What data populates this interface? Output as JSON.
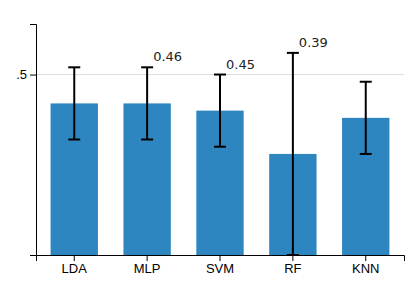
{
  "chart_data": {
    "type": "bar",
    "categories": [
      "LDA",
      "MLP",
      "SVM",
      "RF",
      "KNN"
    ],
    "values": [
      0.46,
      0.46,
      0.45,
      0.39,
      0.44
    ],
    "errors": [
      0.05,
      0.05,
      0.05,
      0.14,
      0.05
    ],
    "color": "#2e86c1",
    "annotations": [
      {
        "category": "MLP",
        "text": "0.46"
      },
      {
        "category": "SVM",
        "text": "0.45"
      },
      {
        "category": "RF",
        "text": "0.39"
      }
    ],
    "ylim": [
      0.25,
      0.57
    ],
    "yticks": [
      {
        "value": 0.5,
        "label": ".5"
      }
    ],
    "grid": true
  }
}
